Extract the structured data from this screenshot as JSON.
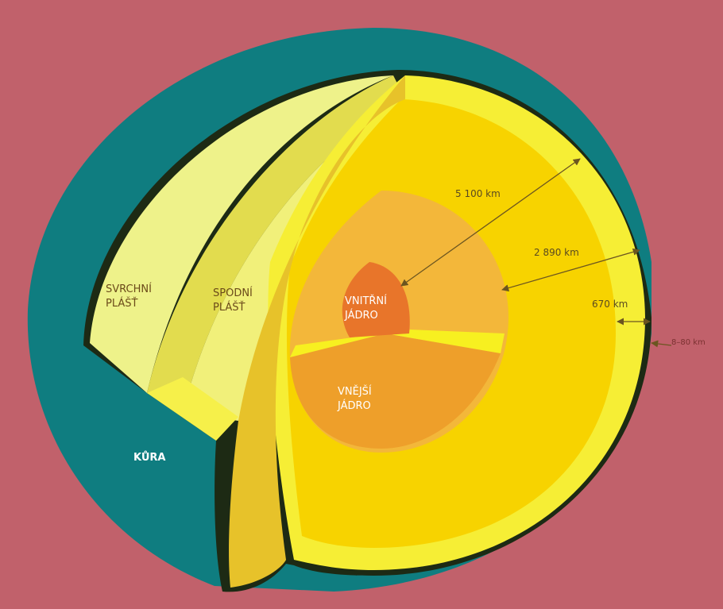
{
  "layers": [
    {
      "label": [
        "SVRCHNÍ",
        "PLÁŠŤ"
      ]
    },
    {
      "label": [
        "SPODNÍ",
        "PLÁŠŤ"
      ]
    },
    {
      "label": [
        "VNITŘNÍ",
        "JÁDRO"
      ]
    },
    {
      "label": [
        "VNĚJŠÍ",
        "JÁDRO"
      ]
    },
    {
      "label": [
        "KŮRA"
      ]
    }
  ],
  "distances": [
    "5 100 km",
    "2 890 km",
    "670 km",
    "8–80 km"
  ]
}
